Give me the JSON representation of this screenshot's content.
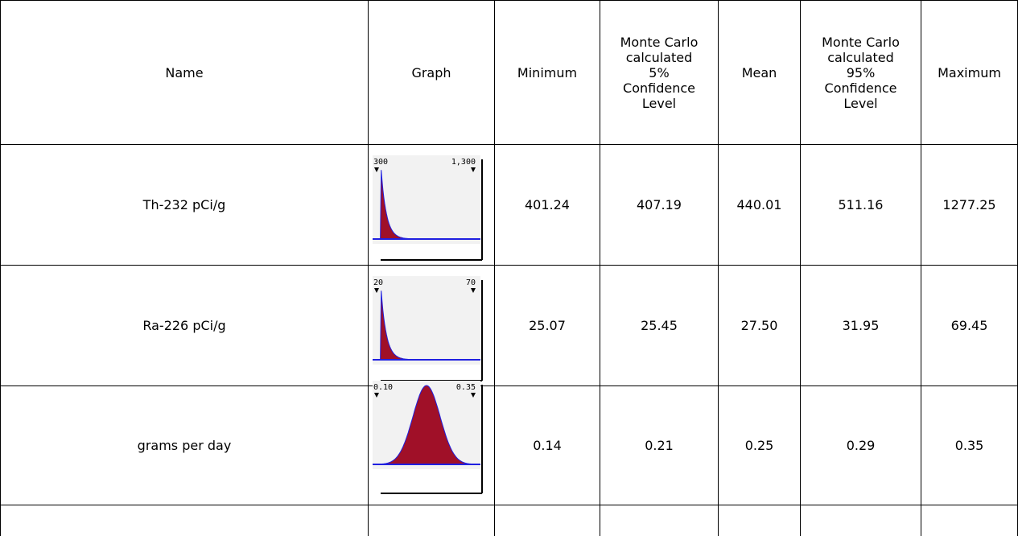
{
  "columns": [
    "Name",
    "Graph",
    "Minimum",
    "Monte Carlo calculated 5% Confidence Level",
    "Mean",
    "Monte Carlo calculated 95% Confidence Level",
    "Maximum"
  ],
  "rows": [
    {
      "name": "Th-232 pCi/g",
      "graph": {
        "left_label": "300",
        "right_label": "1,300",
        "shape": "right-skewed"
      },
      "minimum": "401.24",
      "conf5": "407.19",
      "mean": "440.01",
      "conf95": "511.16",
      "maximum": "1277.25"
    },
    {
      "name": "Ra-226 pCi/g",
      "graph": {
        "left_label": "20",
        "right_label": "70",
        "shape": "right-skewed"
      },
      "minimum": "25.07",
      "conf5": "25.45",
      "mean": "27.50",
      "conf95": "31.95",
      "maximum": "69.45"
    },
    {
      "name": "grams per day",
      "graph": {
        "left_label": "0.10",
        "right_label": "0.35",
        "shape": "normal"
      },
      "minimum": "0.14",
      "conf5": "0.21",
      "mean": "0.25",
      "conf95": "0.29",
      "maximum": "0.35"
    }
  ],
  "colors": {
    "fill": "#a01028",
    "baseline": "#2020e0",
    "plot_bg": "#f2f2f2",
    "marker": "#000000"
  }
}
